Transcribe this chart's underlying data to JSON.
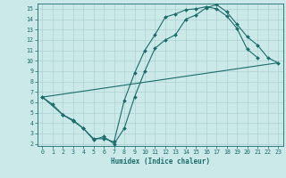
{
  "xlabel": "Humidex (Indice chaleur)",
  "bg_color": "#cce9e9",
  "line_color": "#1a6b6b",
  "grid_color": "#a8cccc",
  "xlim": [
    -0.5,
    23.5
  ],
  "ylim": [
    1.8,
    15.5
  ],
  "xticks": [
    0,
    1,
    2,
    3,
    4,
    5,
    6,
    7,
    8,
    9,
    10,
    11,
    12,
    13,
    14,
    15,
    16,
    17,
    18,
    19,
    20,
    21,
    22,
    23
  ],
  "yticks": [
    2,
    3,
    4,
    5,
    6,
    7,
    8,
    9,
    10,
    11,
    12,
    13,
    14,
    15
  ],
  "line1_x": [
    0,
    1,
    2,
    3,
    4,
    5,
    6,
    7,
    8,
    9,
    10,
    11,
    12,
    13,
    14,
    15,
    16,
    17,
    18,
    19,
    20,
    21
  ],
  "line1_y": [
    6.5,
    5.8,
    4.8,
    4.3,
    3.5,
    2.5,
    2.5,
    2.2,
    6.2,
    8.8,
    11.0,
    12.5,
    14.2,
    14.5,
    14.9,
    15.0,
    15.2,
    15.0,
    14.3,
    13.1,
    11.1,
    10.3
  ],
  "line2_x": [
    0,
    2,
    3,
    4,
    5,
    6,
    7,
    8,
    9,
    10,
    11,
    12,
    13,
    14,
    15,
    16,
    17,
    18,
    19,
    20,
    21,
    22,
    23
  ],
  "line2_y": [
    6.5,
    4.8,
    4.2,
    3.5,
    2.4,
    2.7,
    2.0,
    3.5,
    6.5,
    9.0,
    11.2,
    12.0,
    12.5,
    14.0,
    14.4,
    15.1,
    15.4,
    14.7,
    13.5,
    12.3,
    11.5,
    10.3,
    9.8
  ],
  "line3_x": [
    0,
    23
  ],
  "line3_y": [
    6.5,
    9.8
  ],
  "xlabel_fontsize": 5.5,
  "tick_fontsize": 4.8,
  "marker_size": 2.0,
  "line_width": 0.8
}
